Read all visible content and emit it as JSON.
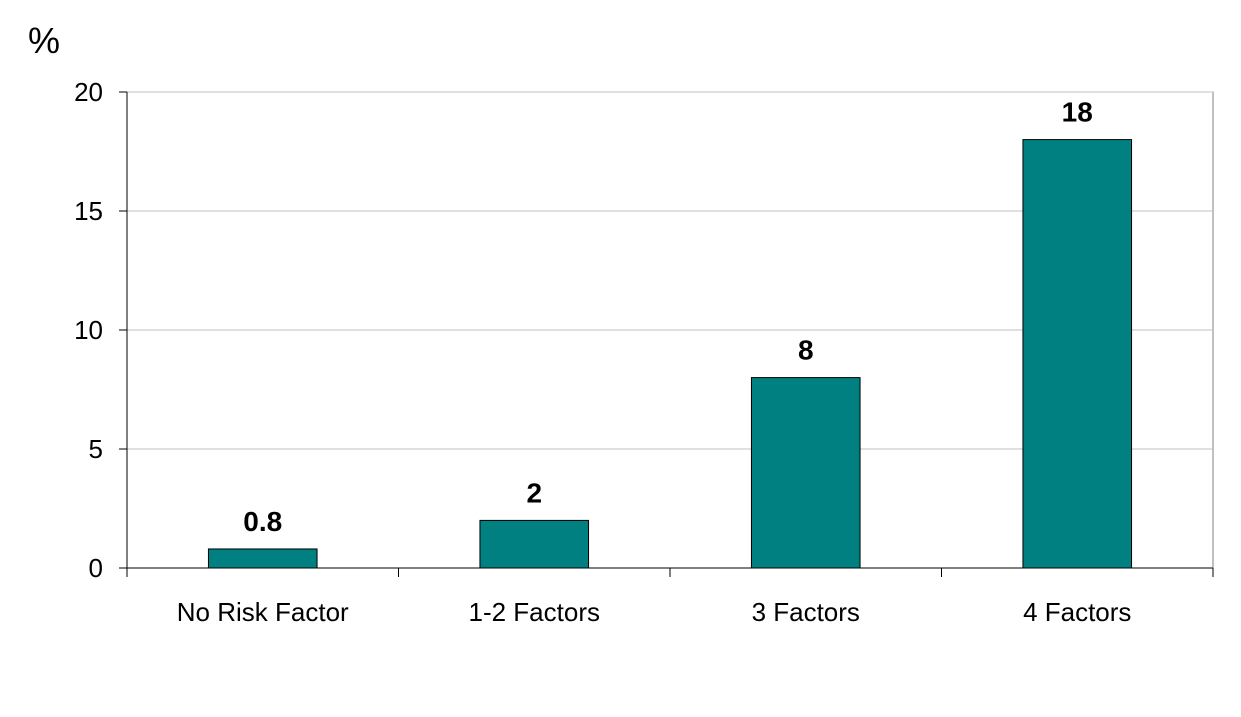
{
  "chart_data": {
    "type": "bar",
    "title": "",
    "xlabel": "",
    "ylabel": "%",
    "categories": [
      "No Risk Factor",
      "1-2 Factors",
      "3 Factors",
      "4 Factors"
    ],
    "values": [
      0.8,
      2,
      8,
      18
    ],
    "data_labels": [
      "0.8",
      "2",
      "8",
      "18"
    ],
    "ylim": [
      0,
      20
    ],
    "yticks": [
      0,
      5,
      10,
      15,
      20
    ],
    "ytick_labels": [
      "0",
      "5",
      "10",
      "15",
      "20"
    ],
    "grid": true,
    "legend": "none",
    "colors": {
      "bar": "#008080",
      "bar_outline": "#000000",
      "grid": "#c0c0c0",
      "axis": "#000000",
      "plot_border": "#808080"
    }
  }
}
